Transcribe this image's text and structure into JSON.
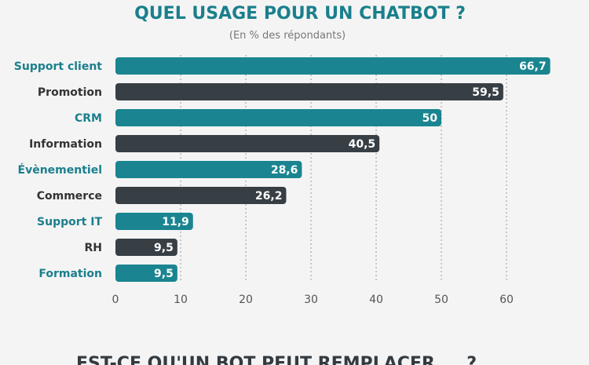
{
  "chart_data": {
    "type": "bar",
    "orientation": "horizontal",
    "title": "QUEL USAGE POUR UN CHATBOT ?",
    "subtitle": "(En % des répondants)",
    "categories": [
      "Support client",
      "Promotion",
      "CRM",
      "Information",
      "Évènementiel",
      "Commerce",
      "Support IT",
      "RH",
      "Formation"
    ],
    "values": [
      66.7,
      59.5,
      50,
      40.5,
      28.6,
      26.2,
      11.9,
      9.5,
      9.5
    ],
    "value_labels": [
      "66,7",
      "59,5",
      "50",
      "40,5",
      "28,6",
      "26,2",
      "11,9",
      "9,5",
      "9,5"
    ],
    "xticks": [
      0,
      10,
      20,
      30,
      40,
      50,
      60
    ],
    "xlim": [
      0,
      67
    ],
    "grid": true,
    "colors": {
      "teal": "#1a8590",
      "dark": "#373f45",
      "teal_label": "#1a7f8c",
      "dark_label": "#333333"
    }
  },
  "next_section": {
    "title": "EST-CE QU'UN BOT PEUT REMPLACER ... ?"
  }
}
